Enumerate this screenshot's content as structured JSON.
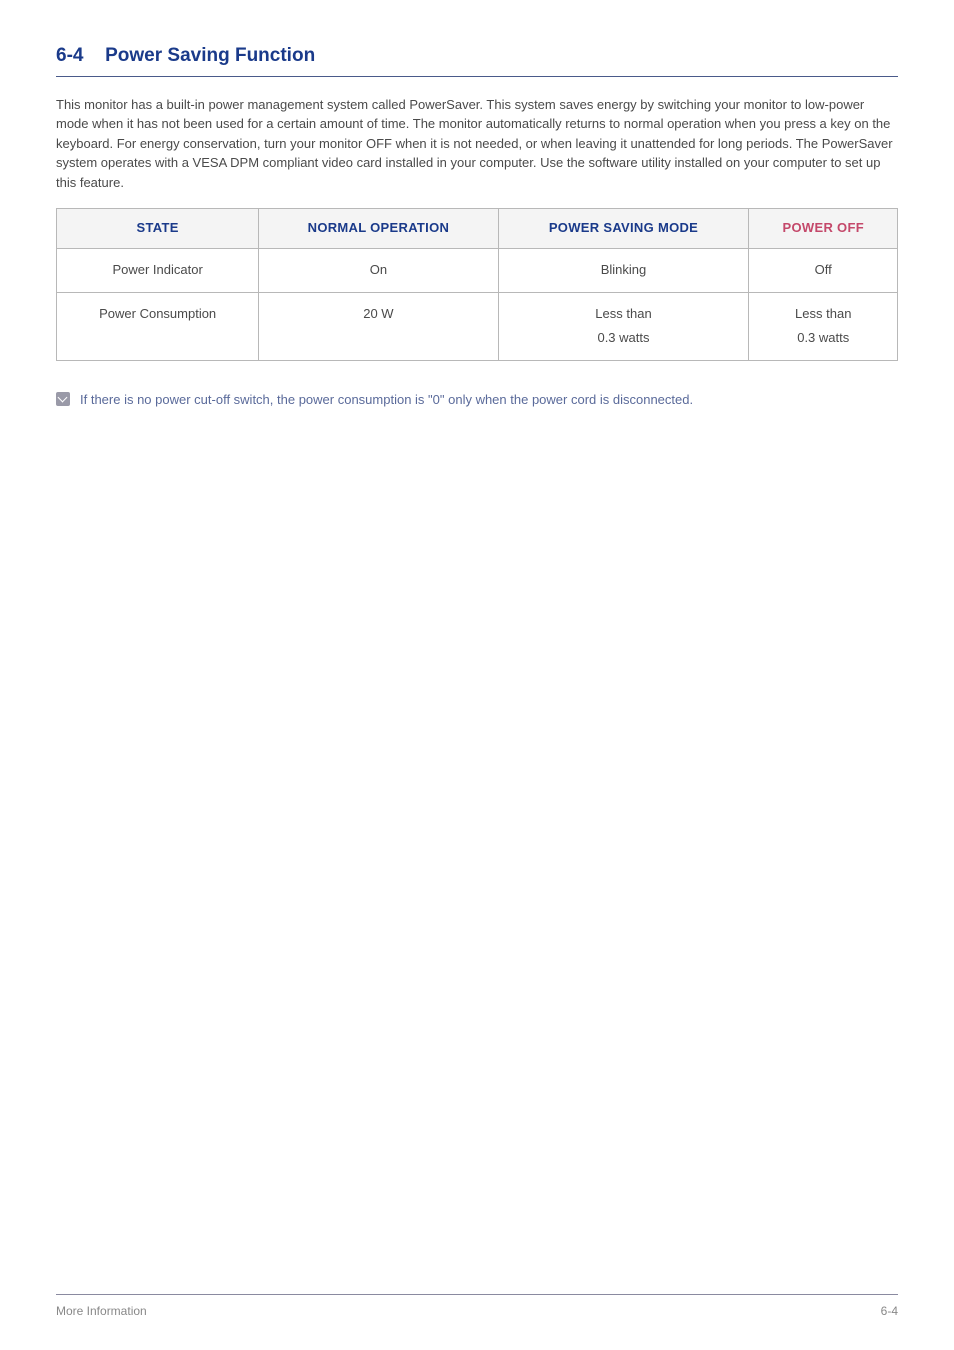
{
  "heading": {
    "number": "6-4",
    "title": "Power Saving Function"
  },
  "body_paragraph": "This monitor has a built-in power management system called PowerSaver. This system saves energy by switching your monitor to low-power mode when it has not been used for a certain amount of time. The monitor automatically returns to normal operation when you press a key on the keyboard. For energy conservation, turn your monitor OFF when it is not needed, or when leaving it unattended for long periods. The PowerSaver system operates with a VESA DPM compliant video card installed in your computer. Use the software utility installed on your computer to set up this feature.",
  "table": {
    "headers": {
      "state": "STATE",
      "normal": "NORMAL OPERATION",
      "saving": "POWER SAVING MODE",
      "off": "POWER OFF"
    },
    "rows": [
      {
        "label": "Power Indicator",
        "normal": "On",
        "saving": "Blinking",
        "off": "Off"
      },
      {
        "label": "Power Consumption",
        "normal": "20 W",
        "saving_line1": "Less than",
        "saving_line2": "0.3 watts",
        "off_line1": "Less than",
        "off_line2": "0.3 watts"
      }
    ]
  },
  "note": "If there is no power cut-off switch, the power consumption is \"0\" only when the power cord is disconnected.",
  "footer": {
    "left": "More Information",
    "right": "6-4"
  },
  "colors": {
    "heading_blue": "#1a3a8a",
    "heading_rule": "#4a5a8a",
    "body_text": "#4a4a4a",
    "th_bg": "#f4f4f4",
    "th_power_off": "#c4486a",
    "border": "#b8b8b8",
    "note_text": "#5a6a9a",
    "note_icon_bg": "#9a9aa8",
    "footer_rule": "#8a8aa0",
    "footer_text": "#888888"
  }
}
